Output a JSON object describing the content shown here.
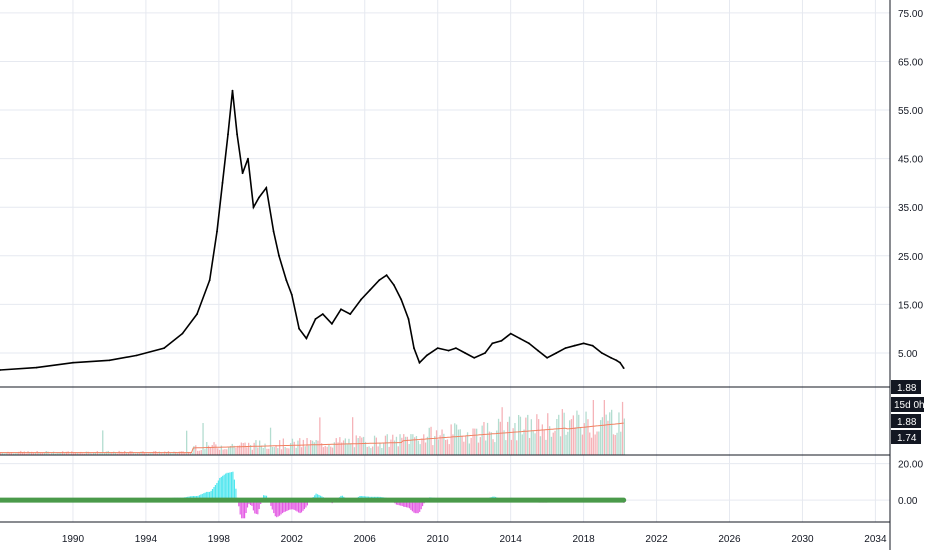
{
  "chart_data": {
    "type": "line",
    "grid": true,
    "price_panel": {
      "y_ticks": [
        "75.00",
        "65.00",
        "55.00",
        "45.00",
        "35.00",
        "25.00",
        "15.00",
        "5.00"
      ],
      "y_tick_values": [
        75,
        65,
        55,
        45,
        35,
        25,
        15,
        5
      ],
      "ylim": [
        -2,
        76
      ],
      "series": [
        {
          "x": [
            1986.0,
            1988.0,
            1990.0,
            1992.0,
            1993.5,
            1995.0,
            1996.0,
            1996.8,
            1997.5,
            1997.9,
            1998.2,
            1998.5,
            1998.75,
            1999.0,
            1999.3,
            1999.6,
            1999.9,
            2000.2,
            2000.6,
            2001.0,
            2001.3,
            2001.7,
            2002.0,
            2002.4,
            2002.8,
            2003.3,
            2003.7,
            2004.2,
            2004.7,
            2005.2,
            2005.8,
            2006.3,
            2006.8,
            2007.2,
            2007.6,
            2008.0,
            2008.4,
            2008.7,
            2009.0,
            2009.4,
            2010.0,
            2010.6,
            2011.0,
            2011.5,
            2012.0,
            2012.6,
            2013.0,
            2013.5,
            2014.0,
            2014.5,
            2015.0,
            2015.5,
            2016.0,
            2016.5,
            2017.0,
            2017.5,
            2018.0,
            2018.5,
            2019.0,
            2019.5,
            2019.8,
            2020.0,
            2020.2
          ],
          "y": [
            1.5,
            2.0,
            3.0,
            3.5,
            4.5,
            6.0,
            9.0,
            13.0,
            20.0,
            30.0,
            40.0,
            50.0,
            59.0,
            50.0,
            42.0,
            45.0,
            35.0,
            37.0,
            39.0,
            30.0,
            25.0,
            20.0,
            17.0,
            10.0,
            8.0,
            12.0,
            13.0,
            11.0,
            14.0,
            13.0,
            16.0,
            18.0,
            20.0,
            21.0,
            19.0,
            16.0,
            12.0,
            6.0,
            3.0,
            4.5,
            6.0,
            5.5,
            6.0,
            5.0,
            4.0,
            5.0,
            7.0,
            7.5,
            9.0,
            8.0,
            7.0,
            5.5,
            4.0,
            5.0,
            6.0,
            6.5,
            7.0,
            6.5,
            5.0,
            4.0,
            3.5,
            3.0,
            1.88
          ]
        }
      ]
    },
    "volume_panel": {
      "ma_line_color": "#f08060",
      "labels": [
        "15d 0h",
        "1.88",
        "1.74"
      ]
    },
    "oscillator_panel": {
      "y_ticks": [
        "20.00",
        "0.00"
      ],
      "y_tick_values": [
        20,
        0
      ],
      "ylim": [
        -12,
        22
      ]
    },
    "x_ticks": [
      "1990",
      "1994",
      "1998",
      "2002",
      "2006",
      "2010",
      "2014",
      "2018",
      "2022",
      "2026",
      "2030",
      "2034"
    ],
    "x_tick_values": [
      1990,
      1994,
      1998,
      2002,
      2006,
      2010,
      2014,
      2018,
      2022,
      2026,
      2030,
      2034
    ],
    "xlim": [
      1986.0,
      2034.8
    ],
    "last_price": "1.88",
    "colors": {
      "price_line": "#000000",
      "grid": "#e6e9f0",
      "axis_text": "#131722",
      "volume_up": "#b3ddd0",
      "volume_down": "#f5b3b8",
      "osc_pos": "#4fe6ee",
      "osc_neg": "#e45ce4",
      "osc_line": "#4a9a4a"
    }
  }
}
